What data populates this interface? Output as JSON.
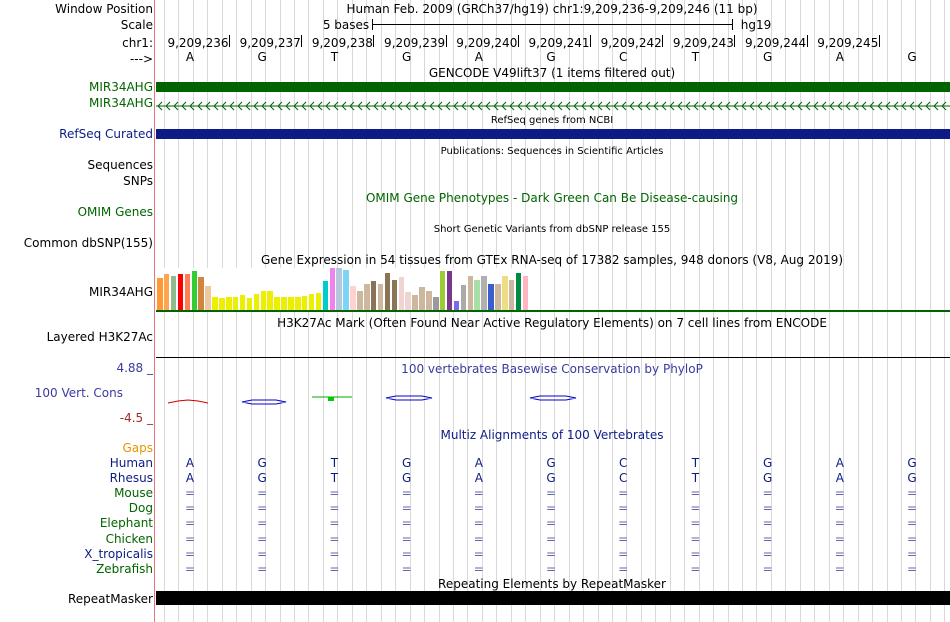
{
  "header": {
    "window_position_label": "Window Position",
    "assembly_title": "Human Feb. 2009 (GRCh37/hg19)   chr1:9,209,236-9,209,246 (11 bp)",
    "scale_label": "Scale",
    "scale_text": "5 bases",
    "scale_db": "hg19",
    "chrom_label": "chr1:",
    "strand_label": "--->",
    "positions": [
      "9,209,236",
      "9,209,237",
      "9,209,238",
      "9,209,239",
      "9,209,240",
      "9,209,241",
      "9,209,242",
      "9,209,243",
      "9,209,244",
      "9,209,245"
    ]
  },
  "bases": [
    "A",
    "G",
    "T",
    "G",
    "A",
    "G",
    "C",
    "T",
    "G",
    "A",
    "G"
  ],
  "tracks": {
    "gencode": {
      "title": "GENCODE V49lift37 (1 items filtered out)",
      "item1": "MIR34AHG",
      "item2": "MIR34AHG",
      "color": "#006400"
    },
    "refseq": {
      "title": "RefSeq genes from NCBI",
      "label": "RefSeq Curated",
      "color": "#0c1c84"
    },
    "pubs": {
      "title": "Publications: Sequences in Scientific Articles",
      "label": "Sequences"
    },
    "snps": {
      "label": "SNPs"
    },
    "omim": {
      "title": "OMIM Gene Phenotypes - Dark Green Can Be Disease-causing",
      "label": "OMIM Genes",
      "color": "#006400"
    },
    "dbsnp": {
      "title": "Short Genetic Variants from dbSNP release 155",
      "label": "Common dbSNP(155)"
    },
    "gtex": {
      "title": "Gene Expression in 54 tissues from GTEx RNA-seq of 17382 samples, 948 donors (V8, Aug 2019)",
      "label": "MIR34AHG",
      "values": [
        0.75,
        0.85,
        0.82,
        0.85,
        0.85,
        0.92,
        0.78,
        0.58,
        0.32,
        0.28,
        0.3,
        0.32,
        0.36,
        0.28,
        0.38,
        0.45,
        0.46,
        0.3,
        0.3,
        0.3,
        0.32,
        0.34,
        0.38,
        0.4,
        0.68,
        1.0,
        1.0,
        0.95,
        0.58,
        0.45,
        0.62,
        0.7,
        0.62,
        0.88,
        0.72,
        0.78,
        0.42,
        0.36,
        0.55,
        0.45,
        0.3,
        0.92,
        0.92,
        0.22,
        0.6,
        0.8,
        0.72,
        0.82,
        0.62,
        0.62,
        0.8,
        0.72,
        0.88,
        0.82
      ],
      "colors": [
        "#ff9933",
        "#ffa54f",
        "#8fbc8f",
        "#ff0000",
        "#ff7f50",
        "#32cd32",
        "#cd853f",
        "#f0c8a0",
        "#eeee00",
        "#eeee00",
        "#eeee00",
        "#eeee00",
        "#eeee00",
        "#eeee00",
        "#eeee00",
        "#eeee00",
        "#eeee00",
        "#eeee00",
        "#eeee00",
        "#eeee00",
        "#eeee00",
        "#eeee00",
        "#eeee00",
        "#eeee00",
        "#00cccc",
        "#ee82ee",
        "#b4c8dc",
        "#7cd5f8",
        "#ffd2d2",
        "#cdb79e",
        "#cdb79e",
        "#8b7355",
        "#cdb79e",
        "#8b7355",
        "#8b7355",
        "#eed5d2",
        "#eed5d2",
        "#cdb79e",
        "#cdb79e",
        "#cdb79e",
        "#9a9a9a",
        "#9acd32",
        "#7a378b",
        "#7b68ee",
        "#aaaaaa",
        "#cdb79e",
        "#a6e0a6",
        "#b0b0b0",
        "#3a5fcd",
        "#cdb79e",
        "#eedd82",
        "#cdb79e",
        "#008b45",
        "#ffb6c1"
      ]
    },
    "h3k27ac": {
      "title": "H3K27Ac Mark (Often Found Near Active Regulatory Elements) on 7 cell lines from ENCODE",
      "label": "Layered H3K27Ac"
    },
    "phylop": {
      "title": "100 vertebrates Basewise Conservation by PhyloP",
      "label": "100 Vert. Cons",
      "max_label": "4.88 _",
      "min_label": "-4.5 _",
      "color": "#3a3aa0"
    },
    "multiz": {
      "gaps_label": "Gaps",
      "title": "Multiz Alignments of 100 Vertebrates",
      "species": [
        {
          "name": "Human",
          "color": "#0c1c84",
          "seq": [
            "A",
            "G",
            "T",
            "G",
            "A",
            "G",
            "C",
            "T",
            "G",
            "A",
            "G"
          ]
        },
        {
          "name": "Rhesus",
          "color": "#0c1c84",
          "seq": [
            "A",
            "G",
            "T",
            "G",
            "A",
            "G",
            "C",
            "T",
            "G",
            "A",
            "G"
          ]
        },
        {
          "name": "Mouse",
          "color": "#006400",
          "seq": [
            "=",
            "=",
            "=",
            "=",
            "=",
            "=",
            "=",
            "=",
            "=",
            "=",
            "="
          ]
        },
        {
          "name": "Dog",
          "color": "#006400",
          "seq": [
            "=",
            "=",
            "=",
            "=",
            "=",
            "=",
            "=",
            "=",
            "=",
            "=",
            "="
          ]
        },
        {
          "name": "Elephant",
          "color": "#006400",
          "seq": [
            "=",
            "=",
            "=",
            "=",
            "=",
            "=",
            "=",
            "=",
            "=",
            "=",
            "="
          ]
        },
        {
          "name": "Chicken",
          "color": "#006400",
          "seq": [
            "=",
            "=",
            "=",
            "=",
            "=",
            "=",
            "=",
            "=",
            "=",
            "=",
            "="
          ]
        },
        {
          "name": "X_tropicalis",
          "color": "#0c1c84",
          "seq": [
            "=",
            "=",
            "=",
            "=",
            "=",
            "=",
            "=",
            "=",
            "=",
            "=",
            "="
          ]
        },
        {
          "name": "Zebrafish",
          "color": "#006400",
          "seq": [
            "=",
            "=",
            "=",
            "=",
            "=",
            "=",
            "=",
            "=",
            "=",
            "=",
            "="
          ]
        }
      ]
    },
    "repeatmasker": {
      "title": "Repeating Elements by RepeatMasker",
      "label": "RepeatMasker"
    }
  }
}
